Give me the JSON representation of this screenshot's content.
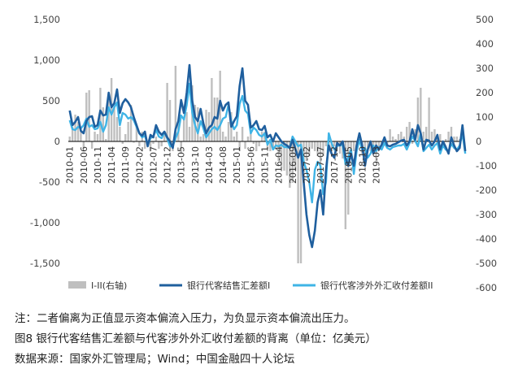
{
  "chart_data": {
    "type": "bar+line",
    "left_axis": {
      "min": -1500,
      "max": 1500,
      "ticks": [
        "1,500",
        "1,000",
        "500",
        "0",
        "-500",
        "-1,000",
        "-1,500"
      ],
      "tick_values": [
        1500,
        1000,
        500,
        0,
        -500,
        -1000,
        -1500
      ]
    },
    "right_axis": {
      "min": -600,
      "max": 500,
      "ticks": [
        "500",
        "400",
        "300",
        "200",
        "100",
        "0",
        "-100",
        "-200",
        "-300",
        "-400",
        "-500",
        "-600"
      ],
      "tick_values": [
        500,
        400,
        300,
        200,
        100,
        0,
        -100,
        -200,
        -300,
        -400,
        -500,
        -600
      ]
    },
    "x_tick_labels": [
      "2010-01",
      "2010-06",
      "2010-11",
      "2011-04",
      "2011-09",
      "2012-02",
      "2012-07",
      "2012-12",
      "2013-05",
      "2013-10",
      "2014-03",
      "2014-08",
      "2015-01",
      "2015-06",
      "2015-11",
      "2016-04",
      "2016-09",
      "2017-02",
      "2017-07",
      "2017-12",
      "2018-05",
      "2018-10",
      "2019-03"
    ],
    "series": [
      {
        "name": "I-II(右轴)",
        "kind": "bar",
        "axis": "right",
        "color": "#bfbfbf",
        "values": [
          20,
          60,
          110,
          80,
          40,
          -30,
          200,
          210,
          -30,
          40,
          30,
          220,
          140,
          10,
          180,
          260,
          140,
          100,
          60,
          -10,
          30,
          80,
          150,
          -5,
          60,
          -20,
          40,
          -30,
          -20,
          -40,
          -10,
          20,
          -30,
          -20,
          30,
          240,
          170,
          -40,
          310,
          70,
          -50,
          100,
          120,
          60,
          230,
          150,
          140,
          20,
          30,
          130,
          120,
          260,
          180,
          180,
          290,
          40,
          20,
          80,
          120,
          20,
          40,
          -40,
          60,
          -30,
          20,
          40,
          -10,
          -40,
          -20,
          40,
          40,
          -30,
          -40,
          -30,
          -20,
          -80,
          -110,
          -120,
          -140,
          -190,
          -170,
          -120,
          -500,
          -500,
          -170,
          -80,
          -60,
          -30,
          -40,
          -60,
          -170,
          -60,
          -20,
          -30,
          -40,
          -20,
          -10,
          -50,
          -70,
          -360,
          -300,
          -30,
          -40,
          -20,
          -10,
          -50,
          -70,
          -30,
          -40,
          -20,
          -80,
          -30,
          -10,
          10,
          -20,
          50,
          20,
          10,
          30,
          40,
          20,
          60,
          80,
          -10,
          50,
          180,
          220,
          40,
          60,
          180,
          40,
          50,
          10,
          30,
          -20,
          10,
          40,
          60,
          20,
          20,
          10
        ]
      },
      {
        "name": "银行代客结售汇差额I",
        "kind": "line",
        "axis": "left",
        "color": "#1f5f9e",
        "values": [
          380,
          200,
          240,
          300,
          130,
          100,
          250,
          300,
          310,
          180,
          200,
          380,
          320,
          330,
          600,
          420,
          470,
          640,
          350,
          470,
          520,
          480,
          420,
          300,
          200,
          100,
          70,
          120,
          -60,
          80,
          50,
          200,
          120,
          80,
          120,
          50,
          0,
          -80,
          150,
          250,
          510,
          350,
          600,
          940,
          500,
          300,
          250,
          400,
          220,
          100,
          170,
          200,
          300,
          280,
          500,
          380,
          450,
          480,
          180,
          250,
          310,
          680,
          900,
          500,
          450,
          170,
          200,
          250,
          150,
          140,
          190,
          50,
          80,
          0,
          100,
          50,
          0,
          -30,
          -50,
          -80,
          20,
          -90,
          -200,
          -100,
          -500,
          -900,
          -1150,
          -1300,
          -1100,
          -750,
          -600,
          -900,
          -350,
          -50,
          -150,
          -200,
          -20,
          -50,
          0,
          -200,
          -300,
          -150,
          -300,
          -50,
          100,
          -50,
          -300,
          -100,
          0,
          -150,
          -50,
          -100,
          -40,
          50,
          -50,
          -60,
          -40,
          -30,
          -10,
          10,
          20,
          -50,
          0,
          150,
          20,
          200,
          100,
          -100,
          20,
          10,
          -50,
          0,
          80,
          -100,
          0,
          -70,
          -150,
          50,
          -50,
          -120,
          -80,
          200,
          -120
        ]
      },
      {
        "name": "银行代客涉外外汇收付差额II",
        "kind": "line",
        "axis": "left",
        "color": "#3fb4e6",
        "values": [
          260,
          150,
          140,
          180,
          160,
          200,
          280,
          180,
          200,
          150,
          160,
          240,
          120,
          200,
          420,
          330,
          420,
          480,
          200,
          350,
          330,
          280,
          300,
          260,
          180,
          100,
          50,
          70,
          -40,
          40,
          60,
          140,
          60,
          40,
          110,
          40,
          -60,
          -60,
          40,
          120,
          320,
          270,
          450,
          710,
          350,
          200,
          100,
          250,
          160,
          50,
          100,
          150,
          180,
          140,
          200,
          280,
          300,
          450,
          250,
          150,
          200,
          460,
          560,
          380,
          340,
          100,
          170,
          140,
          80,
          60,
          100,
          -40,
          20,
          -100,
          -50,
          -60,
          -40,
          -70,
          -70,
          -80,
          60,
          0,
          -60,
          -40,
          -250,
          -350,
          -500,
          -750,
          -350,
          -250,
          -300,
          -650,
          -500,
          100,
          -20,
          -100,
          -60,
          -40,
          -50,
          -280,
          -200,
          -100,
          -400,
          -120,
          20,
          -100,
          -80,
          -200,
          -150,
          -50,
          -120,
          -70,
          -100,
          -20,
          -80,
          -100,
          -70,
          -60,
          -50,
          -50,
          -30,
          -100,
          -20,
          60,
          10,
          -60,
          100,
          -120,
          -80,
          -40,
          -100,
          -50,
          -20,
          -150,
          -50,
          -100,
          -120,
          -30,
          -80,
          -100,
          -50,
          100,
          -150
        ]
      }
    ],
    "legend": [
      "I-II(右轴)",
      "银行代客结售汇差额I",
      "银行代客涉外外汇收付差额II"
    ]
  },
  "note": "注：二者偏离为正值显示资本偏流入压力，为负显示资本偏流出压力。",
  "figure_title": "图8  银行代客结售汇差额与代客涉外外汇收付差额的背离（单位：亿美元）",
  "source": "数据来源：国家外汇管理局；Wind；中国金融四十人论坛"
}
